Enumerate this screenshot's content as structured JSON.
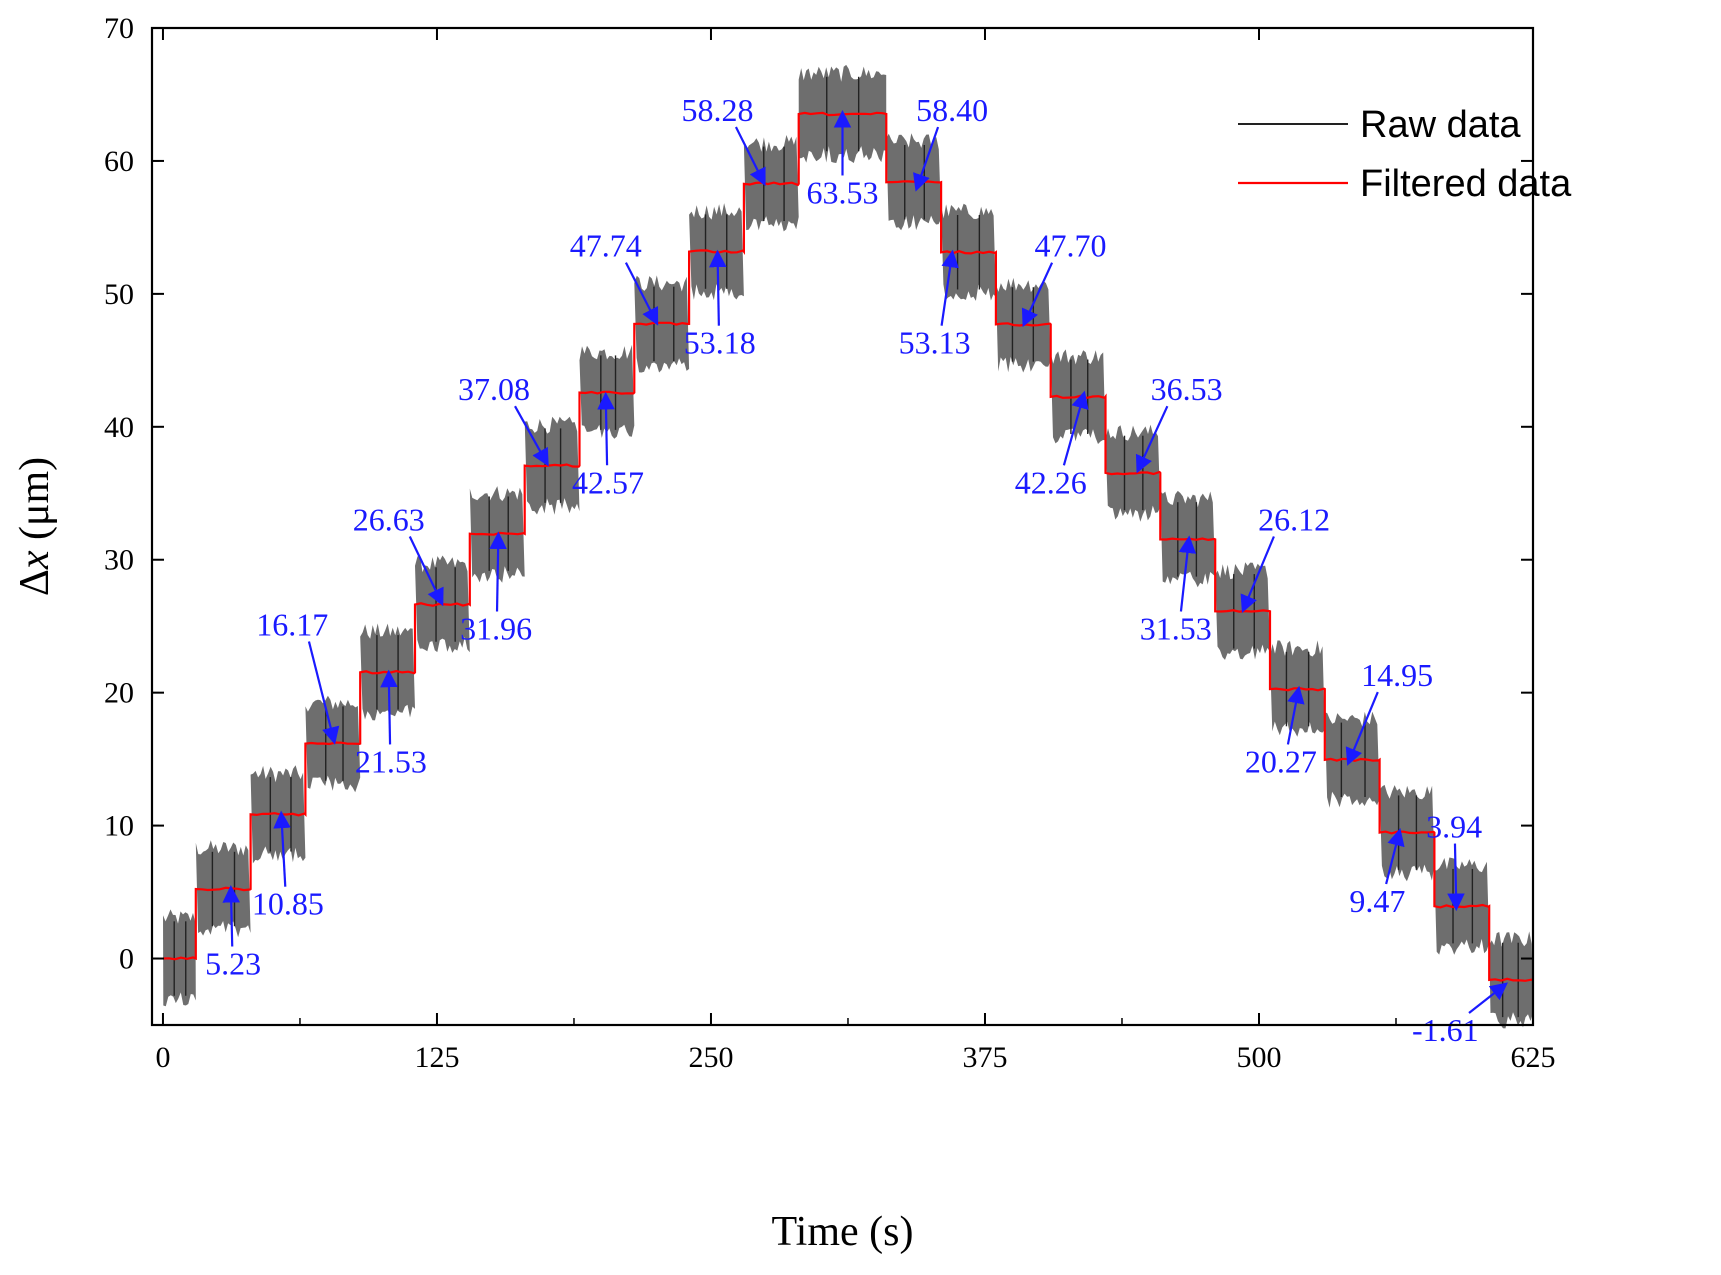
{
  "chart_data": {
    "type": "line",
    "title": "",
    "xlabel": "Time (s)",
    "ylabel_parts": {
      "delta": "Δ",
      "var": "x",
      "unit": " (μm)"
    },
    "xlim": [
      -5,
      625
    ],
    "ylim": [
      -5,
      70
    ],
    "xticks": [
      0,
      125,
      250,
      375,
      500,
      625
    ],
    "yticks": [
      0,
      10,
      20,
      30,
      40,
      50,
      60,
      70
    ],
    "grid": false,
    "legend_position": "top-right",
    "colors": {
      "raw": "#555555",
      "raw_dark": "#222222",
      "filtered": "#ff0000",
      "annotation": "#1a1aff"
    },
    "series": [
      {
        "name": "Raw data",
        "kind": "raw"
      },
      {
        "name": "Filtered data",
        "kind": "filtered"
      }
    ],
    "steps": [
      {
        "t0": 0,
        "t1": 15,
        "value": 0.0
      },
      {
        "t0": 15,
        "t1": 40,
        "value": 5.23
      },
      {
        "t0": 40,
        "t1": 65,
        "value": 10.85
      },
      {
        "t0": 65,
        "t1": 90,
        "value": 16.17
      },
      {
        "t0": 90,
        "t1": 115,
        "value": 21.53
      },
      {
        "t0": 115,
        "t1": 140,
        "value": 26.63
      },
      {
        "t0": 140,
        "t1": 165,
        "value": 31.96
      },
      {
        "t0": 165,
        "t1": 190,
        "value": 37.08
      },
      {
        "t0": 190,
        "t1": 215,
        "value": 42.57
      },
      {
        "t0": 215,
        "t1": 240,
        "value": 47.74
      },
      {
        "t0": 240,
        "t1": 265,
        "value": 53.18
      },
      {
        "t0": 265,
        "t1": 290,
        "value": 58.28
      },
      {
        "t0": 290,
        "t1": 330,
        "value": 63.53
      },
      {
        "t0": 330,
        "t1": 355,
        "value": 58.4
      },
      {
        "t0": 355,
        "t1": 380,
        "value": 53.13
      },
      {
        "t0": 380,
        "t1": 405,
        "value": 47.7
      },
      {
        "t0": 405,
        "t1": 430,
        "value": 42.26
      },
      {
        "t0": 430,
        "t1": 455,
        "value": 36.53
      },
      {
        "t0": 455,
        "t1": 480,
        "value": 31.53
      },
      {
        "t0": 480,
        "t1": 505,
        "value": 26.12
      },
      {
        "t0": 505,
        "t1": 530,
        "value": 20.27
      },
      {
        "t0": 530,
        "t1": 555,
        "value": 14.95
      },
      {
        "t0": 555,
        "t1": 580,
        "value": 9.47
      },
      {
        "t0": 580,
        "t1": 605,
        "value": 3.94
      },
      {
        "t0": 605,
        "t1": 625,
        "value": -1.61
      }
    ],
    "annotations": [
      {
        "label": "5.23",
        "text_at": [
          32,
          -1.2
        ],
        "arrow_to": [
          31,
          5.2
        ]
      },
      {
        "label": "10.85",
        "text_at": [
          57,
          3.3
        ],
        "arrow_to": [
          54,
          10.8
        ]
      },
      {
        "label": "16.17",
        "text_at": [
          59,
          24.3
        ],
        "arrow_to": [
          78,
          16.4
        ]
      },
      {
        "label": "21.53",
        "text_at": [
          104,
          14.0
        ],
        "arrow_to": [
          103,
          21.4
        ]
      },
      {
        "label": "26.63",
        "text_at": [
          103,
          32.2
        ],
        "arrow_to": [
          127,
          26.8
        ]
      },
      {
        "label": "31.96",
        "text_at": [
          152,
          24.0
        ],
        "arrow_to": [
          153,
          31.8
        ]
      },
      {
        "label": "37.08",
        "text_at": [
          151,
          42.0
        ],
        "arrow_to": [
          175,
          37.3
        ]
      },
      {
        "label": "42.57",
        "text_at": [
          203,
          35.0
        ],
        "arrow_to": [
          202,
          42.3
        ]
      },
      {
        "label": "47.74",
        "text_at": [
          202,
          52.8
        ],
        "arrow_to": [
          225,
          47.9
        ]
      },
      {
        "label": "53.18",
        "text_at": [
          254,
          45.5
        ],
        "arrow_to": [
          253,
          53.0
        ]
      },
      {
        "label": "58.28",
        "text_at": [
          253,
          63.0
        ],
        "arrow_to": [
          274,
          58.4
        ]
      },
      {
        "label": "63.53",
        "text_at": [
          310,
          56.8
        ],
        "arrow_to": [
          310,
          63.5
        ]
      },
      {
        "label": "58.40",
        "text_at": [
          360,
          63.0
        ],
        "arrow_to": [
          344,
          58.0
        ]
      },
      {
        "label": "53.13",
        "text_at": [
          352,
          45.5
        ],
        "arrow_to": [
          360,
          53.0
        ]
      },
      {
        "label": "47.70",
        "text_at": [
          414,
          52.8
        ],
        "arrow_to": [
          393,
          47.8
        ]
      },
      {
        "label": "42.26",
        "text_at": [
          405,
          35.0
        ],
        "arrow_to": [
          420,
          42.4
        ]
      },
      {
        "label": "36.53",
        "text_at": [
          467,
          42.0
        ],
        "arrow_to": [
          445,
          36.8
        ]
      },
      {
        "label": "31.53",
        "text_at": [
          462,
          24.0
        ],
        "arrow_to": [
          468,
          31.5
        ]
      },
      {
        "label": "26.12",
        "text_at": [
          516,
          32.2
        ],
        "arrow_to": [
          493,
          26.3
        ]
      },
      {
        "label": "20.27",
        "text_at": [
          510,
          14.0
        ],
        "arrow_to": [
          518,
          20.2
        ]
      },
      {
        "label": "14.95",
        "text_at": [
          563,
          20.5
        ],
        "arrow_to": [
          541,
          14.8
        ]
      },
      {
        "label": "9.47",
        "text_at": [
          554,
          3.5
        ],
        "arrow_to": [
          564,
          9.5
        ]
      },
      {
        "label": "3.94",
        "text_at": [
          589,
          9.1
        ],
        "arrow_to": [
          590,
          3.9
        ]
      },
      {
        "label": "-1.61",
        "text_at": [
          585,
          -6.2
        ],
        "arrow_to": [
          612,
          -2.0
        ]
      }
    ]
  }
}
